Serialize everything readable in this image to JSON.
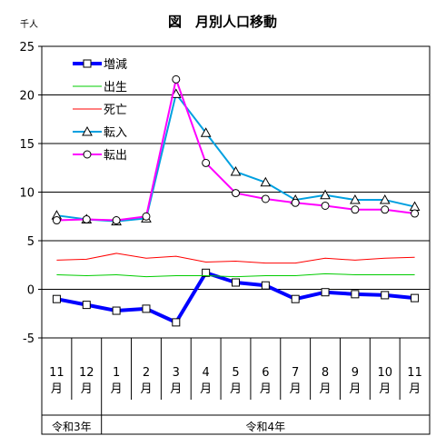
{
  "chart_data": {
    "type": "line",
    "title": "図　月別人口移動",
    "unit_label": "千人",
    "ylim": [
      -5,
      25
    ],
    "yticks": [
      25,
      20,
      15,
      10,
      5,
      0,
      -5
    ],
    "categories": [
      "11",
      "12",
      "1",
      "2",
      "3",
      "4",
      "5",
      "6",
      "7",
      "8",
      "9",
      "10",
      "11"
    ],
    "category_suffix": "月",
    "eras": [
      {
        "label": "令和3年",
        "start_index": 0,
        "end_index": 1
      },
      {
        "label": "令和4年",
        "start_index": 2,
        "end_index": 12
      }
    ],
    "legend_position": "top-left",
    "series": [
      {
        "name": "増減",
        "color": "#0000ff",
        "marker": "square",
        "width": 4,
        "values": [
          -1.0,
          -1.6,
          -2.2,
          -2.0,
          -3.4,
          1.7,
          0.7,
          0.4,
          -1.0,
          -0.3,
          -0.5,
          -0.6,
          -0.9
        ]
      },
      {
        "name": "出生",
        "color": "#00cc00",
        "marker": "none",
        "width": 1,
        "values": [
          1.5,
          1.4,
          1.5,
          1.3,
          1.4,
          1.4,
          1.3,
          1.4,
          1.4,
          1.6,
          1.5,
          1.5,
          1.5
        ]
      },
      {
        "name": "死亡",
        "color": "#ff0000",
        "marker": "none",
        "width": 1,
        "values": [
          3.0,
          3.1,
          3.7,
          3.2,
          3.4,
          2.8,
          2.9,
          2.7,
          2.7,
          3.2,
          3.0,
          3.2,
          3.3
        ]
      },
      {
        "name": "転入",
        "color": "#00a0e0",
        "marker": "triangle",
        "width": 2,
        "values": [
          7.6,
          7.2,
          7.0,
          7.3,
          20.1,
          16.1,
          12.1,
          11.0,
          9.2,
          9.7,
          9.2,
          9.2,
          8.5
        ]
      },
      {
        "name": "転出",
        "color": "#ff00ff",
        "marker": "circle",
        "width": 2,
        "values": [
          7.1,
          7.2,
          7.1,
          7.5,
          21.6,
          13.0,
          9.9,
          9.3,
          8.9,
          8.6,
          8.2,
          8.2,
          7.8
        ]
      }
    ],
    "grid": true
  }
}
